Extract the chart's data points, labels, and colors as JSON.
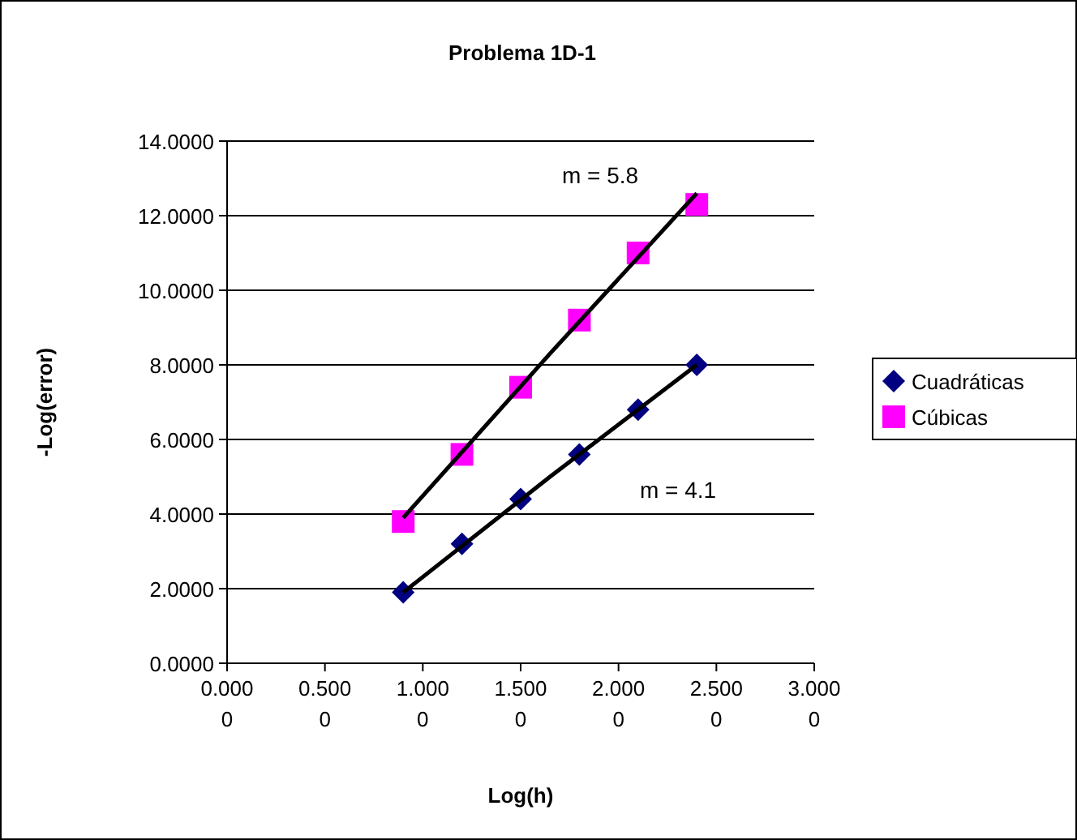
{
  "chart_data": {
    "type": "scatter",
    "title": "Problema 1D-1",
    "xlabel": "Log(h)",
    "ylabel": "-Log(error)",
    "xlim": [
      0,
      3
    ],
    "ylim": [
      0,
      14
    ],
    "xticks": [
      {
        "value": 0,
        "label": "0.0000"
      },
      {
        "value": 0.5,
        "label": "0.5000"
      },
      {
        "value": 1,
        "label": "1.0000"
      },
      {
        "value": 1.5,
        "label": "1.5000"
      },
      {
        "value": 2,
        "label": "2.0000"
      },
      {
        "value": 2.5,
        "label": "2.5000"
      },
      {
        "value": 3,
        "label": "3.0000"
      }
    ],
    "yticks": [
      {
        "value": 0,
        "label": "0.0000"
      },
      {
        "value": 2,
        "label": "2.0000"
      },
      {
        "value": 4,
        "label": "4.0000"
      },
      {
        "value": 6,
        "label": "6.0000"
      },
      {
        "value": 8,
        "label": "8.0000"
      },
      {
        "value": 10,
        "label": "10.0000"
      },
      {
        "value": 12,
        "label": "12.0000"
      },
      {
        "value": 14,
        "label": "14.0000"
      }
    ],
    "grid": "y",
    "legend": "right",
    "x": [
      0.9,
      1.2,
      1.5,
      1.8,
      2.1,
      2.4
    ],
    "series": [
      {
        "type": "line",
        "color": "#000000",
        "x": [
          0.9,
          1.65,
          2.4
        ],
        "values": [
          1.9,
          5.0,
          8.0
        ],
        "marker": "none"
      },
      {
        "type": "line",
        "color": "#000000",
        "x": [
          0.9,
          1.65,
          2.4
        ],
        "values": [
          3.9,
          8.3,
          12.6
        ],
        "marker": "none"
      },
      {
        "name": "Cuadráticas",
        "color": "#000080",
        "marker": "diamond",
        "values": [
          1.9,
          3.2,
          4.4,
          5.6,
          6.8,
          8.0
        ]
      },
      {
        "name": "Cúbicas",
        "color": "#ff00ff",
        "marker": "square",
        "values": [
          3.8,
          5.6,
          7.4,
          9.2,
          11.0,
          12.3
        ]
      }
    ],
    "annotations": [
      "m = 5.8",
      "m = 4.1"
    ]
  }
}
